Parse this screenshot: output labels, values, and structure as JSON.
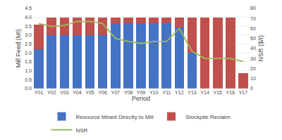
{
  "chart_data": {
    "type": "bar",
    "stacked": true,
    "categories": [
      "Y01",
      "Y02",
      "Y03",
      "Y04",
      "Y05",
      "Y06",
      "Y07",
      "Y08",
      "Y09",
      "Y10",
      "Y11",
      "Y12",
      "Y13",
      "Y14",
      "Y15",
      "Y16",
      "Y17"
    ],
    "series": [
      {
        "name": "Resource Mined Directly to Mill",
        "color": "#4472C4",
        "type": "bar",
        "values": [
          2.2,
          3.0,
          3.0,
          3.0,
          3.0,
          3.0,
          3.65,
          3.65,
          3.65,
          3.65,
          3.65,
          3.45,
          2.0,
          0.0,
          0.0,
          0.0,
          0.0
        ]
      },
      {
        "name": "Stockpile Reclaim",
        "color": "#C0504D",
        "type": "bar",
        "values": [
          1.4,
          1.0,
          1.0,
          1.0,
          1.0,
          1.0,
          0.35,
          0.35,
          0.35,
          0.35,
          0.35,
          0.55,
          2.0,
          4.0,
          4.0,
          4.0,
          0.85
        ]
      },
      {
        "name": "NSR",
        "color": "#9BBB59",
        "type": "line",
        "axis": "y2",
        "values": [
          65,
          62,
          63,
          67,
          67,
          65,
          50,
          47,
          45,
          47,
          47,
          60,
          37,
          30,
          30,
          30,
          27
        ]
      }
    ],
    "xlabel": "Period",
    "ylabel": "Mill Feed (Mt)",
    "y2label": "NSR ($/t)",
    "ylim": [
      0.0,
      4.5
    ],
    "yticks": [
      {
        "value": 0,
        "label": "0.0"
      },
      0.5,
      {
        "value": 1,
        "label": "1.0"
      },
      1.5,
      {
        "value": 2,
        "label": "2.0"
      },
      2.5,
      {
        "value": 3,
        "label": "3.0"
      },
      3.5,
      {
        "value": 4,
        "label": "4.0"
      },
      4.5
    ],
    "y2lim": [
      0,
      80
    ],
    "y2ticks": [
      0,
      10,
      20,
      30,
      40,
      50,
      60,
      70,
      80
    ],
    "grid": true,
    "legend": "bottom"
  }
}
